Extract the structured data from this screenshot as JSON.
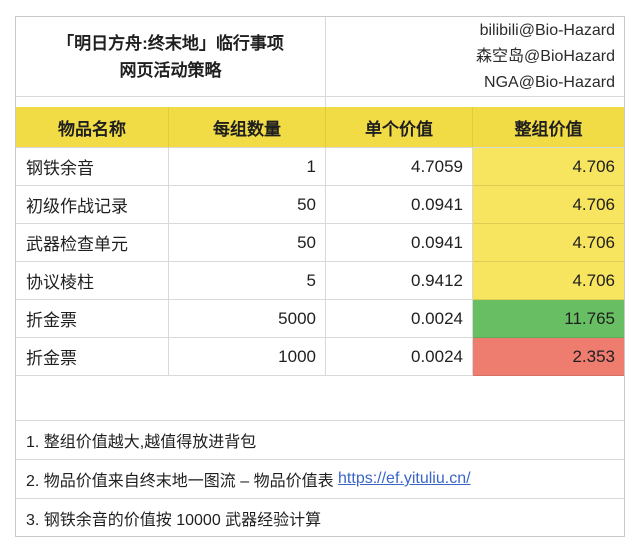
{
  "title": {
    "line1": "「明日方舟:终末地」临行事项",
    "line2": "网页活动策略"
  },
  "credits": {
    "line1": "bilibili@Bio-Hazard",
    "line2": "森空岛@BioHazard",
    "line3": "NGA@Bio-Hazard"
  },
  "table": {
    "headers": {
      "name": "物品名称",
      "qty": "每组数量",
      "unit": "单个价值",
      "total": "整组价值"
    },
    "rows": [
      {
        "name": "钢铁余音",
        "qty": "1",
        "unit": "4.7059",
        "total": "4.706",
        "total_color": "yellow"
      },
      {
        "name": "初级作战记录",
        "qty": "50",
        "unit": "0.0941",
        "total": "4.706",
        "total_color": "yellow"
      },
      {
        "name": "武器检查单元",
        "qty": "50",
        "unit": "0.0941",
        "total": "4.706",
        "total_color": "yellow"
      },
      {
        "name": "协议棱柱",
        "qty": "5",
        "unit": "0.9412",
        "total": "4.706",
        "total_color": "yellow"
      },
      {
        "name": "折金票",
        "qty": "5000",
        "unit": "0.0024",
        "total": "11.765",
        "total_color": "green"
      },
      {
        "name": "折金票",
        "qty": "1000",
        "unit": "0.0024",
        "total": "2.353",
        "total_color": "red"
      }
    ]
  },
  "notes": {
    "n1": "1. 整组价值越大,越值得放进背包",
    "n2_prefix": "2. 物品价值来自终末地一图流 – 物品价值表 ",
    "n2_link": "https://ef.yituliu.cn/",
    "n3": "3. 钢铁余音的价值按 10000 武器经验计算"
  },
  "colors": {
    "header_yellow": "#F2DC45",
    "cell_yellow": "#F7E45F",
    "cell_green": "#68BE62",
    "cell_red": "#EE7D70",
    "link_blue": "#3B66C8",
    "grid_gray": "#D9D9D9",
    "border_gray": "#C9C9C9",
    "text": "#1F1F1F"
  }
}
